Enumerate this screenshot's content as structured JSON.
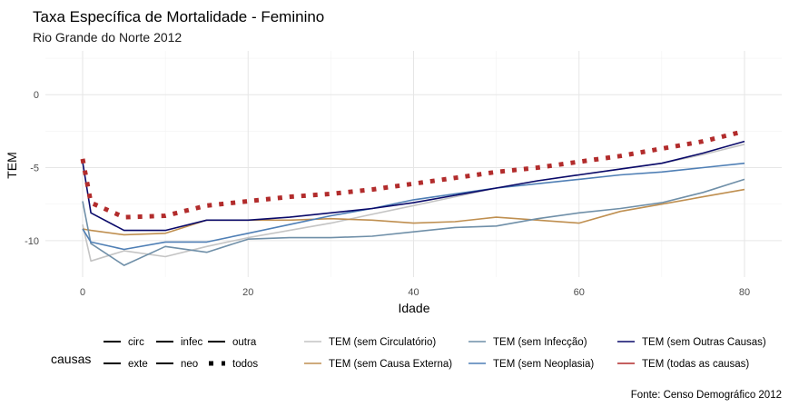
{
  "chart_data": {
    "type": "line",
    "title": "Taxa Específica de Mortalidade - Feminino",
    "subtitle": "Rio Grande do Norte 2012",
    "xlabel": "Idade",
    "ylabel": "TEM",
    "caption": "Fonte: Censo Demográfico 2012",
    "xlim": [
      -4.5,
      84.5
    ],
    "ylim": [
      -12.5,
      3.0
    ],
    "x_ticks": [
      0,
      20,
      40,
      60,
      80
    ],
    "y_ticks": [
      0,
      -5,
      -10
    ],
    "x_tick_labels": [
      "0",
      "20",
      "40",
      "60",
      "80"
    ],
    "y_tick_labels": [
      "0",
      "-5",
      "-10"
    ],
    "grid": true,
    "legend_position": "bottom",
    "legend": {
      "linetype_title": "causas",
      "linetype_items": [
        {
          "label": "circ",
          "style": "solid"
        },
        {
          "label": "exte",
          "style": "solid"
        },
        {
          "label": "infec",
          "style": "solid"
        },
        {
          "label": "neo",
          "style": "solid"
        },
        {
          "label": "outra",
          "style": "solid"
        },
        {
          "label": "todos",
          "style": "dotted"
        }
      ],
      "color_items": [
        {
          "label": "TEM (sem Circulatório)",
          "color": "#c4c4c4"
        },
        {
          "label": "TEM (sem Causa Externa)",
          "color": "#bf8f50"
        },
        {
          "label": "TEM (sem Infecção)",
          "color": "#6f8fa8"
        },
        {
          "label": "TEM (sem Neoplasia)",
          "color": "#4f7fb5"
        },
        {
          "label": "TEM (sem Outras Causas)",
          "color": "#0a0a6a"
        },
        {
          "label": "TEM (todas as causas)",
          "color": "#b22c2c"
        }
      ]
    },
    "x": [
      0,
      1,
      5,
      10,
      15,
      20,
      25,
      30,
      35,
      40,
      45,
      50,
      55,
      60,
      65,
      70,
      75,
      80
    ],
    "series": [
      {
        "name": "TEM (sem Circulatório)",
        "color": "#c4c4c4",
        "style": "solid",
        "values": [
          -8.9,
          -11.4,
          -10.7,
          -11.1,
          -10.4,
          -9.8,
          -9.3,
          -8.8,
          -8.2,
          -7.6,
          -7.0,
          -6.4,
          -5.9,
          -5.5,
          -5.1,
          -4.7,
          -4.1,
          -3.4
        ]
      },
      {
        "name": "TEM (sem Causa Externa)",
        "color": "#bf8f50",
        "style": "solid",
        "values": [
          -9.2,
          -9.3,
          -9.6,
          -9.5,
          -8.6,
          -8.6,
          -8.6,
          -8.5,
          -8.6,
          -8.8,
          -8.7,
          -8.4,
          -8.6,
          -8.8,
          -8.0,
          -7.5,
          -7.0,
          -6.5
        ]
      },
      {
        "name": "TEM (sem Infecção)",
        "color": "#6f8fa8",
        "style": "solid",
        "values": [
          -7.3,
          -10.2,
          -11.7,
          -10.4,
          -10.8,
          -9.9,
          -9.8,
          -9.8,
          -9.7,
          -9.4,
          -9.1,
          -9.0,
          -8.5,
          -8.1,
          -7.8,
          -7.4,
          -6.7,
          -5.8
        ]
      },
      {
        "name": "TEM (sem Neoplasia)",
        "color": "#4f7fb5",
        "style": "solid",
        "values": [
          -9.2,
          -10.1,
          -10.6,
          -10.1,
          -10.1,
          -9.5,
          -8.9,
          -8.3,
          -7.8,
          -7.2,
          -6.8,
          -6.4,
          -6.1,
          -5.8,
          -5.5,
          -5.3,
          -5.0,
          -4.7
        ]
      },
      {
        "name": "TEM (sem Outras Causas)",
        "color": "#0a0a6a",
        "style": "solid",
        "values": [
          -4.6,
          -8.1,
          -9.3,
          -9.3,
          -8.6,
          -8.6,
          -8.4,
          -8.1,
          -7.8,
          -7.4,
          -6.9,
          -6.4,
          -5.9,
          -5.5,
          -5.1,
          -4.7,
          -4.0,
          -3.2
        ]
      },
      {
        "name": "TEM (todas as causas)",
        "color": "#b22c2c",
        "style": "dotted",
        "values": [
          -4.4,
          -7.4,
          -8.4,
          -8.3,
          -7.6,
          -7.3,
          -7.0,
          -6.8,
          -6.5,
          -6.1,
          -5.7,
          -5.3,
          -5.0,
          -4.6,
          -4.2,
          -3.7,
          -3.2,
          -2.5
        ]
      }
    ]
  }
}
